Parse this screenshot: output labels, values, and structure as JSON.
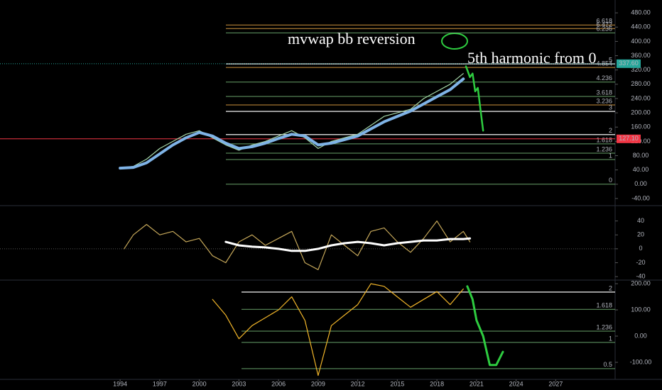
{
  "chart_data": [
    {
      "type": "line",
      "xlim": [
        1984.9,
        2031.5
      ],
      "ylim": [
        -60,
        516
      ],
      "yticks": [
        {
          "value": 480,
          "label": "480.00"
        },
        {
          "value": 440,
          "label": "440.00"
        },
        {
          "value": 400,
          "label": "400.00"
        },
        {
          "value": 360,
          "label": "360.00"
        },
        {
          "value": 320,
          "label": "320.00"
        },
        {
          "value": 280,
          "label": "280.00"
        },
        {
          "value": 240,
          "label": "240.00"
        },
        {
          "value": 200,
          "label": "200.00"
        },
        {
          "value": 160,
          "label": "160.00"
        },
        {
          "value": 120,
          "label": "120.00"
        },
        {
          "value": 80,
          "label": "80.00"
        },
        {
          "value": 40,
          "label": "40.00"
        },
        {
          "value": 0,
          "label": "0.00"
        },
        {
          "value": -40,
          "label": "-40.00"
        }
      ],
      "series": [
        {
          "color": "#a5d6a7",
          "x": [
            1994,
            1995,
            1996,
            1997,
            1998,
            1999,
            2000,
            2001,
            2002,
            2003,
            2004,
            2005,
            2006,
            2007,
            2008,
            2009,
            2010,
            2011,
            2012,
            2013,
            2014,
            2015,
            2016,
            2017,
            2018,
            2019,
            2020
          ],
          "values": [
            45,
            50,
            70,
            100,
            120,
            140,
            150,
            130,
            110,
            95,
            110,
            120,
            135,
            150,
            130,
            100,
            120,
            130,
            140,
            165,
            190,
            200,
            210,
            240,
            260,
            280,
            310
          ]
        },
        {
          "color": "#7fb3e6",
          "x": [
            1994,
            1995,
            1996,
            1997,
            1998,
            1999,
            2000,
            2001,
            2002,
            2003,
            2004,
            2005,
            2006,
            2007,
            2008,
            2009,
            2010,
            2011,
            2012,
            2013,
            2014,
            2015,
            2016,
            2017,
            2018,
            2019,
            2020
          ],
          "values": [
            45,
            47,
            60,
            85,
            110,
            130,
            145,
            135,
            115,
            100,
            105,
            115,
            128,
            140,
            135,
            110,
            115,
            125,
            135,
            155,
            175,
            190,
            205,
            225,
            245,
            265,
            295
          ]
        },
        {
          "color": "#2ecc40",
          "x": [
            2020.2,
            2020.5,
            2020.7,
            2020.9,
            2021.1,
            2021.3,
            2021.5
          ],
          "values": [
            330,
            300,
            310,
            260,
            270,
            210,
            150
          ]
        }
      ],
      "levels": [
        {
          "value": 446,
          "label": "6.618",
          "color": "#ffb74d"
        },
        {
          "value": 436,
          "label": "6.472",
          "color": "#ffb74d"
        },
        {
          "value": 424,
          "label": "6.236",
          "color": "#81c784"
        },
        {
          "value": 337,
          "label": "5",
          "color": "#ffffff"
        },
        {
          "value": 327,
          "label": "4.854",
          "color": "#ffb74d"
        },
        {
          "value": 286,
          "label": "4.236",
          "color": "#81c784"
        },
        {
          "value": 246,
          "label": "3.618",
          "color": "#81c784"
        },
        {
          "value": 222,
          "label": "3.236",
          "color": "#ffb74d"
        },
        {
          "value": 204,
          "label": "3",
          "color": "#ffffff"
        },
        {
          "value": 139,
          "label": "2",
          "color": "#ffffff"
        },
        {
          "value": 113,
          "label": "1.618",
          "color": "#81c784"
        },
        {
          "value": 87,
          "label": "1.236",
          "color": "#81c784"
        },
        {
          "value": 69,
          "label": "1",
          "color": "#81c784"
        },
        {
          "value": 0,
          "label": "0",
          "color": "#81c784"
        }
      ],
      "price_markers": [
        {
          "value": 337.6,
          "label": "337.60",
          "color": "#26a69a"
        },
        {
          "value": 127.1,
          "label": "127.10",
          "color": "#f23645"
        }
      ],
      "annotations": [
        "mvwap bb reversion",
        "5th harmonic from 0"
      ]
    },
    {
      "type": "line",
      "xlim": [
        1984.9,
        2031.5
      ],
      "ylim": [
        -46,
        60
      ],
      "yticks": [
        40,
        20,
        0,
        -20,
        -40
      ],
      "series": [
        {
          "color": "#c6a85a",
          "x": [
            1994.3,
            1995,
            1996,
            1997,
            1998,
            1999,
            2000,
            2001,
            2002,
            2003,
            2004,
            2005,
            2006,
            2007,
            2008,
            2009,
            2010,
            2011,
            2012,
            2013,
            2014,
            2015,
            2016,
            2017,
            2018,
            2019,
            2020,
            2020.5
          ],
          "values": [
            0,
            20,
            35,
            20,
            25,
            10,
            15,
            -10,
            -20,
            10,
            20,
            5,
            15,
            25,
            -20,
            -30,
            20,
            5,
            -10,
            25,
            30,
            10,
            -5,
            15,
            40,
            10,
            25,
            10
          ]
        },
        {
          "color": "#ffffff",
          "x": [
            2002,
            2003,
            2004,
            2005,
            2006,
            2007,
            2008,
            2009,
            2010,
            2011,
            2012,
            2013,
            2014,
            2015,
            2016,
            2017,
            2018,
            2019,
            2020,
            2020.5
          ],
          "values": [
            10,
            5,
            3,
            2,
            0,
            -3,
            -3,
            0,
            5,
            8,
            10,
            8,
            5,
            8,
            10,
            12,
            12,
            14,
            14,
            15
          ]
        }
      ]
    },
    {
      "type": "line",
      "xlim": [
        1984.9,
        2031.5
      ],
      "ylim": [
        -165,
        211
      ],
      "yticks": [
        {
          "value": 200,
          "label": "200.00"
        },
        {
          "value": 100,
          "label": "100.00"
        },
        {
          "value": 0,
          "label": "0.00"
        },
        {
          "value": -100,
          "label": "-100.00"
        }
      ],
      "xticks": [
        1994,
        1997,
        2000,
        2003,
        2006,
        2009,
        2012,
        2015,
        2018,
        2021,
        2024,
        2027
      ],
      "series": [
        {
          "color": "#f0b429",
          "x": [
            2001,
            2002,
            2003,
            2004,
            2005,
            2006,
            2007,
            2008,
            2009,
            2010,
            2011,
            2012,
            2013,
            2014,
            2015,
            2016,
            2017,
            2018,
            2019,
            2020
          ],
          "values": [
            140,
            80,
            -10,
            40,
            70,
            100,
            150,
            60,
            -150,
            40,
            80,
            120,
            200,
            190,
            150,
            110,
            140,
            170,
            120,
            180
          ]
        },
        {
          "color": "#2ecc40",
          "x": [
            2020.3,
            2020.7,
            2021,
            2021.5,
            2022,
            2022.5,
            2023
          ],
          "values": [
            190,
            140,
            60,
            0,
            -110,
            -110,
            -60
          ]
        }
      ],
      "levels": [
        {
          "value": 168,
          "label": "2",
          "color": "#ffffff"
        },
        {
          "value": 102,
          "label": "1.618",
          "color": "#81c784"
        },
        {
          "value": 19,
          "label": "1.236",
          "color": "#81c784"
        },
        {
          "value": -24,
          "label": "1",
          "color": "#81c784"
        },
        {
          "value": -124,
          "label": "0.5",
          "color": "#81c784"
        }
      ]
    }
  ]
}
